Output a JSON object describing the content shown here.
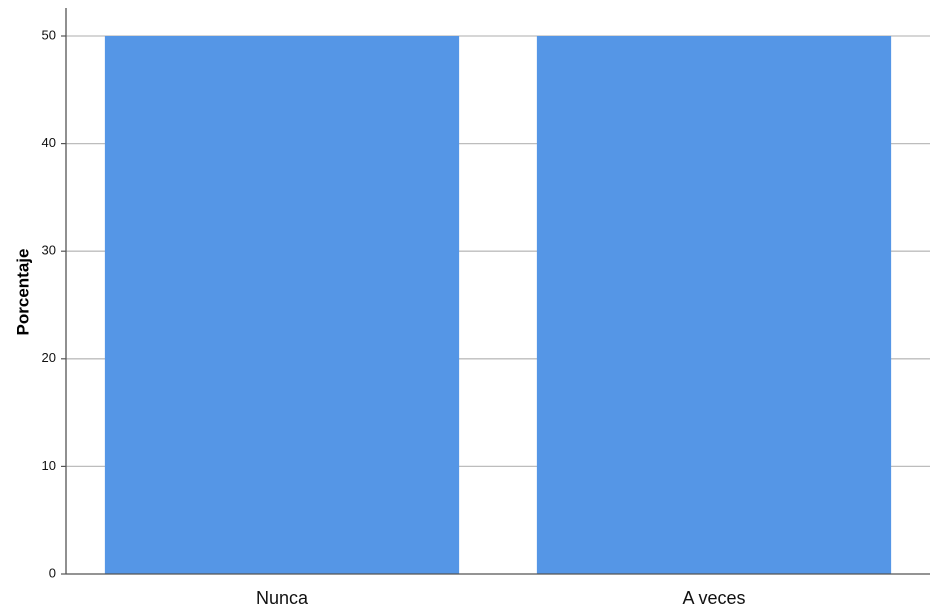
{
  "chart_data": {
    "type": "bar",
    "title": "",
    "xlabel": "",
    "ylabel": "Porcentaje",
    "categories": [
      "Nunca",
      "A veces"
    ],
    "values": [
      50,
      50
    ],
    "ylim": [
      0,
      50
    ],
    "yticks": [
      0,
      10,
      20,
      30,
      40,
      50
    ],
    "grid": true,
    "legend": "none",
    "bar_color": "#5596E6"
  }
}
